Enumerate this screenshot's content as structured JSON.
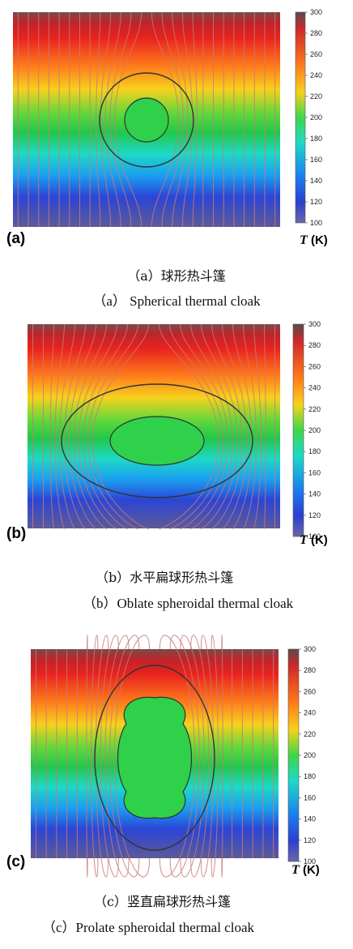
{
  "figure": {
    "colorbar_ticks": [
      "300",
      "280",
      "260",
      "240",
      "220",
      "200",
      "180",
      "160",
      "140",
      "120",
      "100"
    ],
    "colorbar_unit_symbol": "T",
    "colorbar_unit": "(K)",
    "colors": {
      "hot": "#e8231f",
      "mid": "#27c83c",
      "cold": "#2b45d6",
      "isotherm_lines": "#c97a7a",
      "boundary": "#333333"
    },
    "panels": [
      {
        "label": "(a)",
        "caption_cn": "（a）球形热斗篷",
        "caption_en": "（a） Spherical thermal cloak"
      },
      {
        "label": "(b)",
        "caption_cn": "（b）水平扁球形热斗篷",
        "caption_en": "（b）Oblate spheroidal thermal cloak"
      },
      {
        "label": "(c)",
        "caption_cn": "（c）竖直扁球形热斗篷",
        "caption_en": "（c）Prolate spheroidal thermal cloak"
      }
    ]
  }
}
